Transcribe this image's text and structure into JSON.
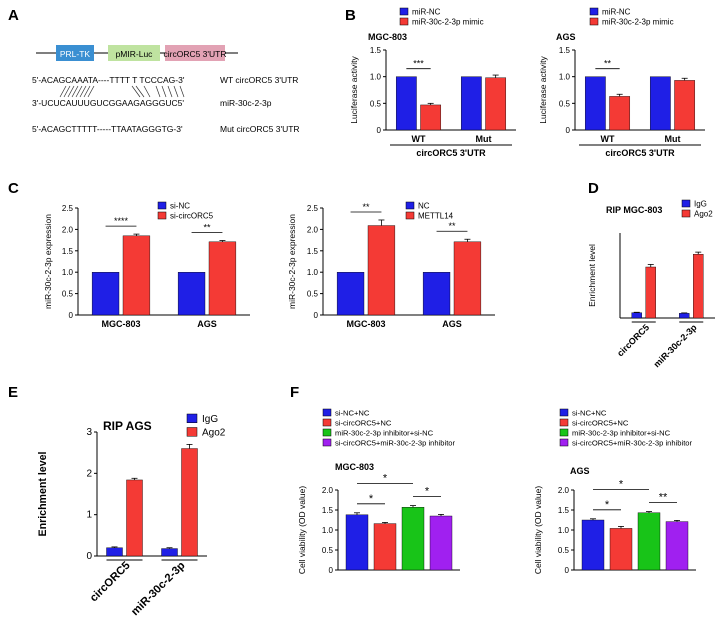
{
  "panel_letters": [
    "A",
    "B",
    "C",
    "D",
    "E",
    "F"
  ],
  "colors": {
    "blue": "#1f1fe6",
    "red": "#f43a35",
    "green": "#18c418",
    "purple": "#a020f0",
    "prltk": "#3a8fd2",
    "pmirluc": "#bfe3a0",
    "circ3utr": "#e2a2b4"
  },
  "panel_a": {
    "construct": [
      "PRL-TK",
      "pMIR-Luc",
      "circORC5 3'UTR"
    ],
    "seq_wt": "5'-ACAGCAAATA----TTTT T TCCCAG-3'",
    "seq_wt_label": "WT circORC5 3'UTR",
    "seq_mir": "3'-UCUCAUUUGUCGGAAGAGGGUC5'",
    "seq_mir_label": "miR-30c-2-3p",
    "seq_mut": "5'-ACAGCTTTTT-----TTAATAGGGTG-3'",
    "seq_mut_label": "Mut circORC5 3'UTR"
  },
  "chart_data": [
    {
      "id": "B1",
      "type": "bar",
      "title": "MGC-803",
      "ylabel": "Luciferase activity",
      "ylim": [
        0,
        1.5
      ],
      "yticks": [
        0,
        0.5,
        1.0,
        1.5
      ],
      "categories": [
        "WT",
        "Mut"
      ],
      "xgroup_label": "circORC5 3'UTR",
      "series": [
        {
          "name": "miR-NC",
          "color": "blue",
          "values": [
            1.0,
            1.0
          ],
          "err": [
            0,
            0
          ]
        },
        {
          "name": "miR-30c-2-3p mimic",
          "color": "red",
          "values": [
            0.47,
            0.98
          ],
          "err": [
            0.03,
            0.05
          ]
        }
      ],
      "sig": [
        {
          "cat": 0,
          "text": "***"
        }
      ]
    },
    {
      "id": "B2",
      "type": "bar",
      "title": "AGS",
      "ylabel": "Luciferase activity",
      "ylim": [
        0,
        1.5
      ],
      "yticks": [
        0,
        0.5,
        1.0,
        1.5
      ],
      "categories": [
        "WT",
        "Mut"
      ],
      "xgroup_label": "circORC5 3'UTR",
      "series": [
        {
          "name": "miR-NC",
          "color": "blue",
          "values": [
            1.0,
            1.0
          ],
          "err": [
            0,
            0
          ]
        },
        {
          "name": "miR-30c-2-3p mimic",
          "color": "red",
          "values": [
            0.63,
            0.93
          ],
          "err": [
            0.04,
            0.04
          ]
        }
      ],
      "sig": [
        {
          "cat": 0,
          "text": "**"
        }
      ]
    },
    {
      "id": "C1",
      "type": "bar",
      "title": "",
      "ylabel": "miR-30c-2-3p expression",
      "ylim": [
        0,
        2.5
      ],
      "yticks": [
        0,
        0.5,
        1.0,
        1.5,
        2.0,
        2.5
      ],
      "categories": [
        "MGC-803",
        "AGS"
      ],
      "series": [
        {
          "name": "si-NC",
          "color": "blue",
          "values": [
            1.0,
            1.0
          ],
          "err": [
            0,
            0
          ]
        },
        {
          "name": "si-circORC5",
          "color": "red",
          "values": [
            1.85,
            1.71
          ],
          "err": [
            0.04,
            0.03
          ]
        }
      ],
      "sig": [
        {
          "cat": 0,
          "text": "****"
        },
        {
          "cat": 1,
          "text": "**"
        }
      ]
    },
    {
      "id": "C2",
      "type": "bar",
      "title": "",
      "ylabel": "miR-30c-2-3p expression",
      "ylim": [
        0,
        2.5
      ],
      "yticks": [
        0,
        0.5,
        1.0,
        1.5,
        2.0,
        2.5
      ],
      "categories": [
        "MGC-803",
        "AGS"
      ],
      "series": [
        {
          "name": "NC",
          "color": "blue",
          "values": [
            1.0,
            1.0
          ],
          "err": [
            0,
            0
          ]
        },
        {
          "name": "METTL14",
          "color": "red",
          "values": [
            2.09,
            1.71
          ],
          "err": [
            0.13,
            0.06
          ]
        }
      ],
      "sig": [
        {
          "cat": 0,
          "text": "**"
        },
        {
          "cat": 1,
          "text": "**"
        }
      ]
    },
    {
      "id": "D",
      "type": "bar",
      "title": "RIP    MGC-803",
      "ylabel": "Enrichment level",
      "ylim": [
        0,
        4
      ],
      "yticks": [],
      "categories": [
        "circORC5",
        "miR-30c-2-3p"
      ],
      "series": [
        {
          "name": "IgG",
          "color": "blue",
          "values": [
            0.25,
            0.22
          ],
          "err": [
            0.02,
            0.02
          ]
        },
        {
          "name": "Ago2",
          "color": "red",
          "values": [
            2.4,
            3.0
          ],
          "err": [
            0.12,
            0.1
          ]
        }
      ],
      "sig": []
    },
    {
      "id": "E",
      "type": "bar",
      "title": "RIP    AGS",
      "ylabel": "Enrichment level",
      "ylim": [
        0,
        3
      ],
      "yticks": [
        0,
        1,
        2,
        3
      ],
      "categories": [
        "circORC5",
        "miR-30c-2-3p"
      ],
      "series": [
        {
          "name": "IgG",
          "color": "blue",
          "values": [
            0.2,
            0.18
          ],
          "err": [
            0.02,
            0.02
          ]
        },
        {
          "name": "Ago2",
          "color": "red",
          "values": [
            1.84,
            2.6
          ],
          "err": [
            0.04,
            0.1
          ]
        }
      ],
      "sig": []
    },
    {
      "id": "F1",
      "type": "bar",
      "title": "MGC-803",
      "ylabel": "Cell viability (OD value)",
      "ylim": [
        0,
        2.0
      ],
      "yticks": [
        0,
        0.5,
        1.0,
        1.5,
        2.0
      ],
      "categories": [
        ""
      ],
      "series": [
        {
          "name": "si-NC+NC",
          "color": "blue",
          "values": [
            1.38
          ],
          "err": [
            0.05
          ]
        },
        {
          "name": "si-circORC5+NC",
          "color": "red",
          "values": [
            1.16
          ],
          "err": [
            0.03
          ]
        },
        {
          "name": "miR-30c-2-3p inhibitor+si-NC",
          "color": "green",
          "values": [
            1.57
          ],
          "err": [
            0.04
          ]
        },
        {
          "name": "si-circORC5+miR-30c-2-3p inhibitor",
          "color": "purple",
          "values": [
            1.35
          ],
          "err": [
            0.04
          ]
        }
      ],
      "sig_pairs": [
        {
          "a": 0,
          "b": 1,
          "text": "*"
        },
        {
          "a": 0,
          "b": 2,
          "text": "*"
        },
        {
          "a": 2,
          "b": 3,
          "text": "*"
        }
      ]
    },
    {
      "id": "F2",
      "type": "bar",
      "title": "AGS",
      "ylabel": "Cell viability (OD value)",
      "ylim": [
        0,
        2.0
      ],
      "yticks": [
        0,
        0.5,
        1.0,
        1.5,
        2.0
      ],
      "categories": [
        ""
      ],
      "series": [
        {
          "name": "si-NC+NC",
          "color": "blue",
          "values": [
            1.25
          ],
          "err": [
            0.03
          ]
        },
        {
          "name": "si-circORC5+NC",
          "color": "red",
          "values": [
            1.04
          ],
          "err": [
            0.05
          ]
        },
        {
          "name": "miR-30c-2-3p inhibitor+si-NC",
          "color": "green",
          "values": [
            1.43
          ],
          "err": [
            0.03
          ]
        },
        {
          "name": "si-circORC5+miR-30c-2-3p inhibitor",
          "color": "purple",
          "values": [
            1.21
          ],
          "err": [
            0.03
          ]
        }
      ],
      "sig_pairs": [
        {
          "a": 0,
          "b": 1,
          "text": "*"
        },
        {
          "a": 0,
          "b": 2,
          "text": "*"
        },
        {
          "a": 2,
          "b": 3,
          "text": "**"
        }
      ]
    }
  ]
}
